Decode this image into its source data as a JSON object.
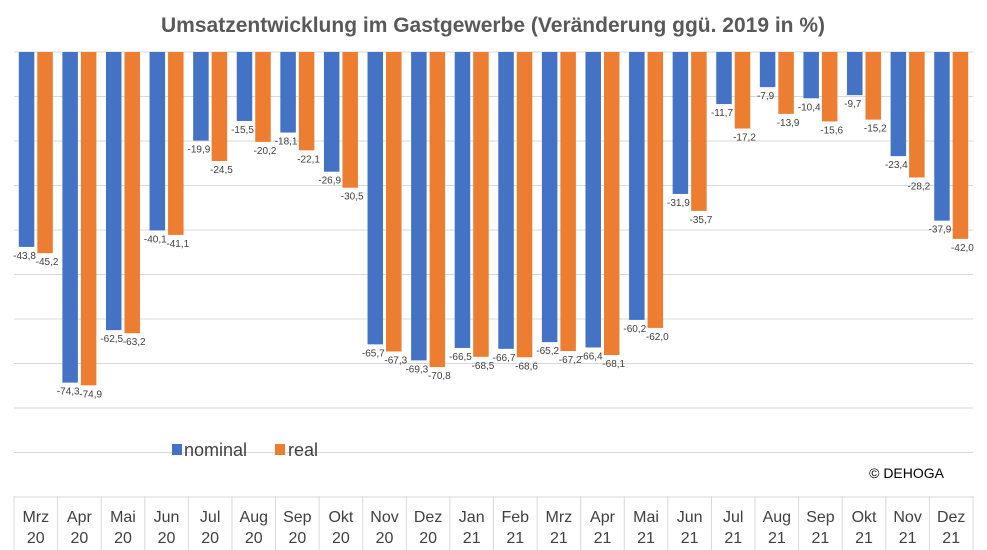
{
  "chart_data": {
    "type": "bar",
    "title": "Umsatzentwicklung im Gastgewerbe (Veränderung ggü. 2019 in %)",
    "xlabel": "",
    "ylabel": "",
    "ylim": [
      -80,
      0
    ],
    "grid": true,
    "legend_position": "bottom-left",
    "categories": [
      [
        "Mrz",
        "20"
      ],
      [
        "Apr",
        "20"
      ],
      [
        "Mai",
        "20"
      ],
      [
        "Jun",
        "20"
      ],
      [
        "Jul",
        "20"
      ],
      [
        "Aug",
        "20"
      ],
      [
        "Sep",
        "20"
      ],
      [
        "Okt",
        "20"
      ],
      [
        "Nov",
        "20"
      ],
      [
        "Dez",
        "20"
      ],
      [
        "Jan",
        "21"
      ],
      [
        "Feb",
        "21"
      ],
      [
        "Mrz",
        "21"
      ],
      [
        "Apr",
        "21"
      ],
      [
        "Mai",
        "21"
      ],
      [
        "Jun",
        "21"
      ],
      [
        "Jul",
        "21"
      ],
      [
        "Aug",
        "21"
      ],
      [
        "Sep",
        "21"
      ],
      [
        "Okt",
        "21"
      ],
      [
        "Nov",
        "21"
      ],
      [
        "Dez",
        "21"
      ]
    ],
    "series": [
      {
        "name": "nominal",
        "color": "#4472c4",
        "values": [
          -43.8,
          -74.3,
          -62.5,
          -40.1,
          -19.9,
          -15.5,
          -18.1,
          -26.9,
          -65.7,
          -69.3,
          -66.5,
          -66.7,
          -65.2,
          -66.4,
          -60.2,
          -31.9,
          -11.7,
          -7.9,
          -10.4,
          -9.7,
          -23.4,
          -37.9
        ],
        "labels": [
          "-43,8",
          "-74,3",
          "-62,5",
          "-40,1",
          "-19,9",
          "-15,5",
          "-18,1",
          "-26,9",
          "-65,7",
          "-69,3",
          "-66,5",
          "-66,7",
          "-65,2",
          "-66,4",
          "-60,2",
          "-31,9",
          "-11,7",
          "-7,9",
          "-10,4",
          "-9,7",
          "-23,4",
          "-37,9"
        ]
      },
      {
        "name": "real",
        "color": "#ed7d31",
        "values": [
          -45.2,
          -74.9,
          -63.2,
          -41.1,
          -24.5,
          -20.2,
          -22.1,
          -30.5,
          -67.3,
          -70.8,
          -68.5,
          -68.6,
          -67.2,
          -68.1,
          -62.0,
          -35.7,
          -17.2,
          -13.9,
          -15.6,
          -15.2,
          -28.2,
          -42.0
        ],
        "labels": [
          "-45,2",
          "-74,9",
          "-63,2",
          "-41,1",
          "-24,5",
          "-20,2",
          "-22,1",
          "-30,5",
          "-67,3",
          "-70,8",
          "-68,5",
          "-68,6",
          "-67,2",
          "-68,1",
          "-62,0",
          "-35,7",
          "-17,2",
          "-13,9",
          "-15,6",
          "-15,2",
          "-28,2",
          "-42,0"
        ]
      }
    ]
  },
  "copyright": "© DEHOGA"
}
